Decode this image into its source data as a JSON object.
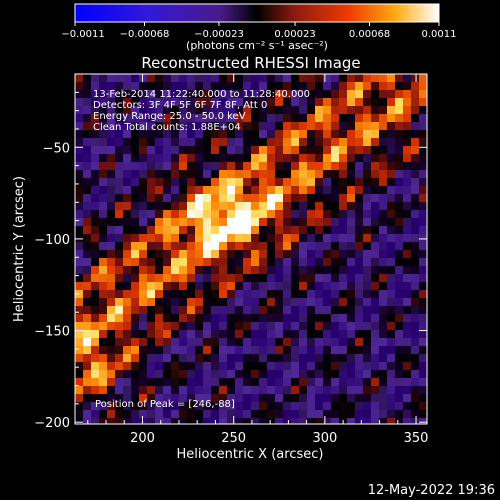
{
  "chart_data": {
    "type": "heatmap",
    "title": "Reconstructed RHESSI Image",
    "xlabel": "Heliocentric X (arcsec)",
    "ylabel": "Heliocentric Y (arcsec)",
    "xlim": [
      163,
      356
    ],
    "ylim": [
      -201,
      -10
    ],
    "x_ticks": [
      200,
      250,
      300,
      350
    ],
    "y_ticks": [
      -50,
      -100,
      -150,
      -200
    ],
    "x_tick_labels": [
      "200",
      "250",
      "300",
      "350"
    ],
    "y_tick_labels": [
      "−50",
      "−100",
      "−150",
      "−200"
    ],
    "colorbar": {
      "min": -0.0011,
      "max": 0.0011,
      "tick_values": [
        -0.0011,
        -0.00068,
        -0.00023,
        0.00023,
        0.00068,
        0.0011
      ],
      "tick_labels": [
        "−0.0011",
        "−0.00068",
        "−0.00023",
        "0.00023",
        "0.00068",
        "0.0011"
      ],
      "unit_label": "(photons cm⁻² s⁻¹ asec⁻²)"
    },
    "annotations": [
      "13-Feb-2014 11:22:40.000 to 11:28:40.000",
      "Detectors: 3F 4F 5F 6F 7F 8F, Att 0",
      "Energy Range: 25.0 - 50.0 keV",
      "Clean     Total counts: 1.88E+04"
    ],
    "peak_label": "Position of Peak = [246,-88]",
    "peak": [
      246,
      -88
    ]
  },
  "footer": {
    "timestamp": "12-May-2022 19:36"
  }
}
